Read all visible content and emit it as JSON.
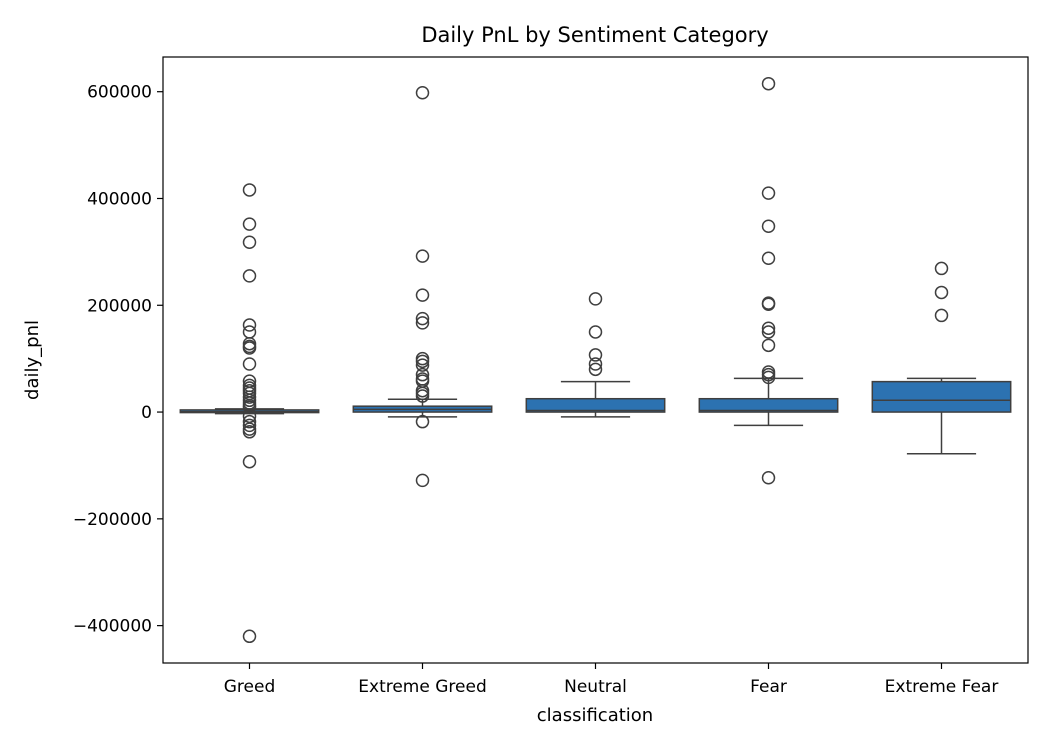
{
  "chart_data": {
    "type": "box",
    "title": "Daily PnL by Sentiment Category",
    "xlabel": "classification",
    "ylabel": "daily_pnl",
    "ylim": [
      -470000,
      665000
    ],
    "yticks": [
      600000,
      400000,
      200000,
      0,
      -200000,
      -400000
    ],
    "ytick_labels": [
      "600000",
      "400000",
      "200000",
      "0",
      "−200000",
      "−400000"
    ],
    "categories": [
      "Greed",
      "Extreme Greed",
      "Neutral",
      "Fear",
      "Extreme Fear"
    ],
    "box_color": "#2c72b1",
    "line_color": "#3f3f3f",
    "boxes": [
      {
        "category": "Greed",
        "whisker_low": -3000,
        "q1": -1000,
        "median": 500,
        "q3": 4000,
        "whisker_high": 6000,
        "outliers": [
          416000,
          352000,
          318000,
          255000,
          163000,
          150000,
          128000,
          123000,
          120000,
          90000,
          58000,
          50000,
          45000,
          40000,
          35000,
          28000,
          22000,
          17000,
          12000,
          9000,
          -8000,
          -18000,
          -25000,
          -32000,
          -37000,
          -93000,
          -420000
        ]
      },
      {
        "category": "Extreme Greed",
        "whisker_low": -9000,
        "q1": 0,
        "median": 5000,
        "q3": 11000,
        "whisker_high": 24000,
        "outliers": [
          598000,
          292000,
          219000,
          175000,
          167000,
          100000,
          95000,
          88000,
          70000,
          62000,
          58000,
          40000,
          35000,
          30000,
          -18000,
          -128000
        ]
      },
      {
        "category": "Neutral",
        "whisker_low": -9000,
        "q1": 0,
        "median": 3000,
        "q3": 25000,
        "whisker_high": 57000,
        "outliers": [
          212000,
          150000,
          107000,
          90000,
          80000
        ]
      },
      {
        "category": "Fear",
        "whisker_low": -25000,
        "q1": 0,
        "median": 3000,
        "q3": 25000,
        "whisker_high": 63000,
        "outliers": [
          615000,
          410000,
          348000,
          288000,
          204000,
          202000,
          157000,
          150000,
          125000,
          75000,
          70000,
          65000,
          -123000
        ]
      },
      {
        "category": "Extreme Fear",
        "whisker_low": -78000,
        "q1": 0,
        "median": 22000,
        "q3": 57000,
        "whisker_high": 63000,
        "outliers": [
          269000,
          224000,
          181000
        ]
      }
    ]
  }
}
